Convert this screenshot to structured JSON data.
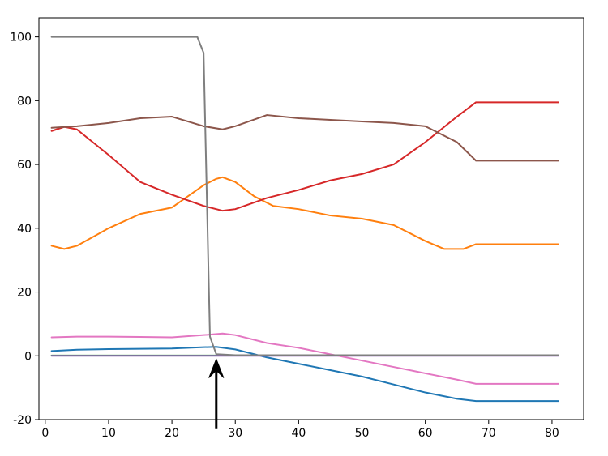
{
  "chart_data": {
    "type": "line",
    "title": "",
    "xlabel": "",
    "ylabel": "",
    "xlim": [
      -1,
      85
    ],
    "ylim": [
      -20,
      106
    ],
    "xticks": [
      0,
      10,
      20,
      30,
      40,
      50,
      60,
      70,
      80
    ],
    "yticks": [
      -20,
      0,
      20,
      40,
      60,
      80,
      100
    ],
    "grid": false,
    "legend": "none",
    "annotation": {
      "type": "arrow",
      "direction": "up",
      "target": {
        "x": 27,
        "y": 0
      },
      "tail": {
        "y": -23
      }
    },
    "series": [
      {
        "color": "#1f77b4",
        "x": [
          1,
          5,
          10,
          15,
          20,
          25,
          27,
          30,
          35,
          40,
          45,
          50,
          55,
          60,
          65,
          68,
          70,
          75,
          81
        ],
        "y": [
          1.5,
          1.9,
          2.1,
          2.2,
          2.3,
          2.7,
          2.8,
          2,
          -0.5,
          -2.5,
          -4.5,
          -6.5,
          -9,
          -11.5,
          -13.5,
          -14.2,
          -14.2,
          -14.2,
          -14.2
        ]
      },
      {
        "color": "#ff7f0e",
        "x": [
          1,
          3,
          5,
          10,
          15,
          20,
          25,
          27,
          28,
          30,
          33,
          36,
          40,
          45,
          50,
          55,
          60,
          63,
          66,
          68,
          70,
          75,
          81
        ],
        "y": [
          34.5,
          33.5,
          34.5,
          40,
          44.5,
          46.5,
          53.5,
          55.5,
          56,
          54.5,
          50,
          47,
          46,
          44,
          43,
          41,
          36,
          33.5,
          33.5,
          35,
          35,
          35,
          35
        ]
      },
      {
        "color": "#2ca02c",
        "x": [
          1,
          81
        ],
        "y": [
          0.1,
          0.1
        ]
      },
      {
        "color": "#d62728",
        "x": [
          1,
          3,
          5,
          10,
          15,
          20,
          25,
          28,
          30,
          35,
          40,
          45,
          50,
          55,
          60,
          65,
          68,
          70,
          75,
          81
        ],
        "y": [
          70.5,
          71.8,
          71,
          63,
          54.5,
          50.5,
          47,
          45.5,
          46,
          49.5,
          52,
          55,
          57,
          60,
          67,
          75,
          79.5,
          79.5,
          79.5,
          79.5
        ]
      },
      {
        "color": "#9467bd",
        "x": [
          1,
          81
        ],
        "y": [
          0,
          0
        ]
      },
      {
        "color": "#8c564b",
        "x": [
          1,
          5,
          10,
          15,
          20,
          25,
          28,
          30,
          35,
          40,
          45,
          50,
          55,
          60,
          65,
          68,
          70,
          75,
          81
        ],
        "y": [
          71.5,
          72,
          73,
          74.5,
          75,
          72,
          71,
          72,
          75.5,
          74.5,
          74,
          73.5,
          73,
          72,
          67,
          61.2,
          61.2,
          61.2,
          61.2
        ]
      },
      {
        "color": "#e377c2",
        "x": [
          1,
          5,
          10,
          15,
          20,
          25,
          28,
          30,
          35,
          40,
          45,
          50,
          55,
          60,
          65,
          68,
          70,
          75,
          81
        ],
        "y": [
          5.8,
          6,
          6,
          5.9,
          5.8,
          6.5,
          7,
          6.5,
          4,
          2.5,
          0.5,
          -1.5,
          -3.5,
          -5.5,
          -7.5,
          -8.8,
          -8.8,
          -8.8,
          -8.8
        ]
      },
      {
        "color": "#7f7f7f",
        "x": [
          1,
          24,
          25,
          26,
          27,
          30,
          35,
          40,
          50,
          60,
          70,
          81
        ],
        "y": [
          100,
          100,
          95,
          6,
          0.5,
          0.2,
          0.2,
          0.2,
          0.2,
          0.2,
          0.2,
          0.2
        ]
      }
    ]
  }
}
